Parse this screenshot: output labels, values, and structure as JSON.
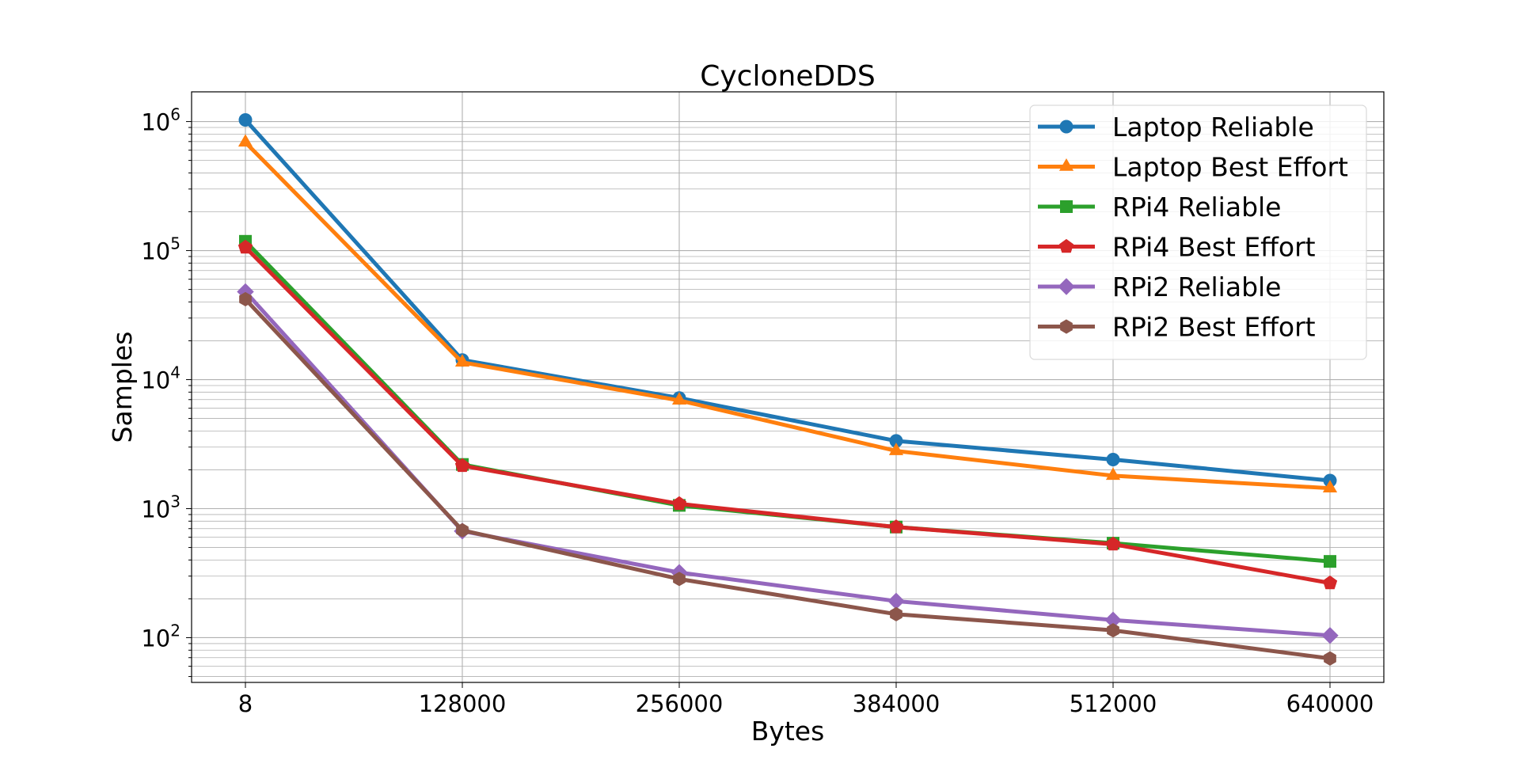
{
  "chart_data": {
    "type": "line",
    "title": "CycloneDDS",
    "xlabel": "Bytes",
    "ylabel": "Samples",
    "yscale": "log",
    "ylim": [
      45,
      1700000
    ],
    "grid": true,
    "legend_position": "top-right",
    "x": [
      8,
      128000,
      256000,
      384000,
      512000,
      640000
    ],
    "x_tick_labels": [
      "8",
      "128000",
      "256000",
      "384000",
      "512000",
      "640000"
    ],
    "y_ticks": [
      {
        "base": "10",
        "exp": "2",
        "value": 100
      },
      {
        "base": "10",
        "exp": "3",
        "value": 1000
      },
      {
        "base": "10",
        "exp": "4",
        "value": 10000
      },
      {
        "base": "10",
        "exp": "5",
        "value": 100000
      },
      {
        "base": "10",
        "exp": "6",
        "value": 1000000
      }
    ],
    "series": [
      {
        "name": "Laptop Reliable",
        "color": "#1f77b4",
        "marker": "circle",
        "values": [
          1030000,
          14200,
          7200,
          3350,
          2400,
          1650
        ]
      },
      {
        "name": "Laptop Best Effort",
        "color": "#ff7f0e",
        "marker": "triangle",
        "values": [
          690000,
          13600,
          6900,
          2800,
          1800,
          1440
        ]
      },
      {
        "name": "RPi4 Reliable",
        "color": "#2ca02c",
        "marker": "square",
        "values": [
          118000,
          2200,
          1060,
          720,
          540,
          390
        ]
      },
      {
        "name": "RPi4 Best Effort",
        "color": "#d62728",
        "marker": "pentagon",
        "values": [
          106000,
          2150,
          1090,
          720,
          530,
          265
        ]
      },
      {
        "name": "RPi2 Reliable",
        "color": "#9467bd",
        "marker": "diamond",
        "values": [
          48000,
          670,
          320,
          192,
          137,
          104
        ]
      },
      {
        "name": "RPi2 Best Effort",
        "color": "#8c564b",
        "marker": "hexagon",
        "values": [
          42000,
          680,
          285,
          152,
          114,
          69
        ]
      }
    ]
  }
}
